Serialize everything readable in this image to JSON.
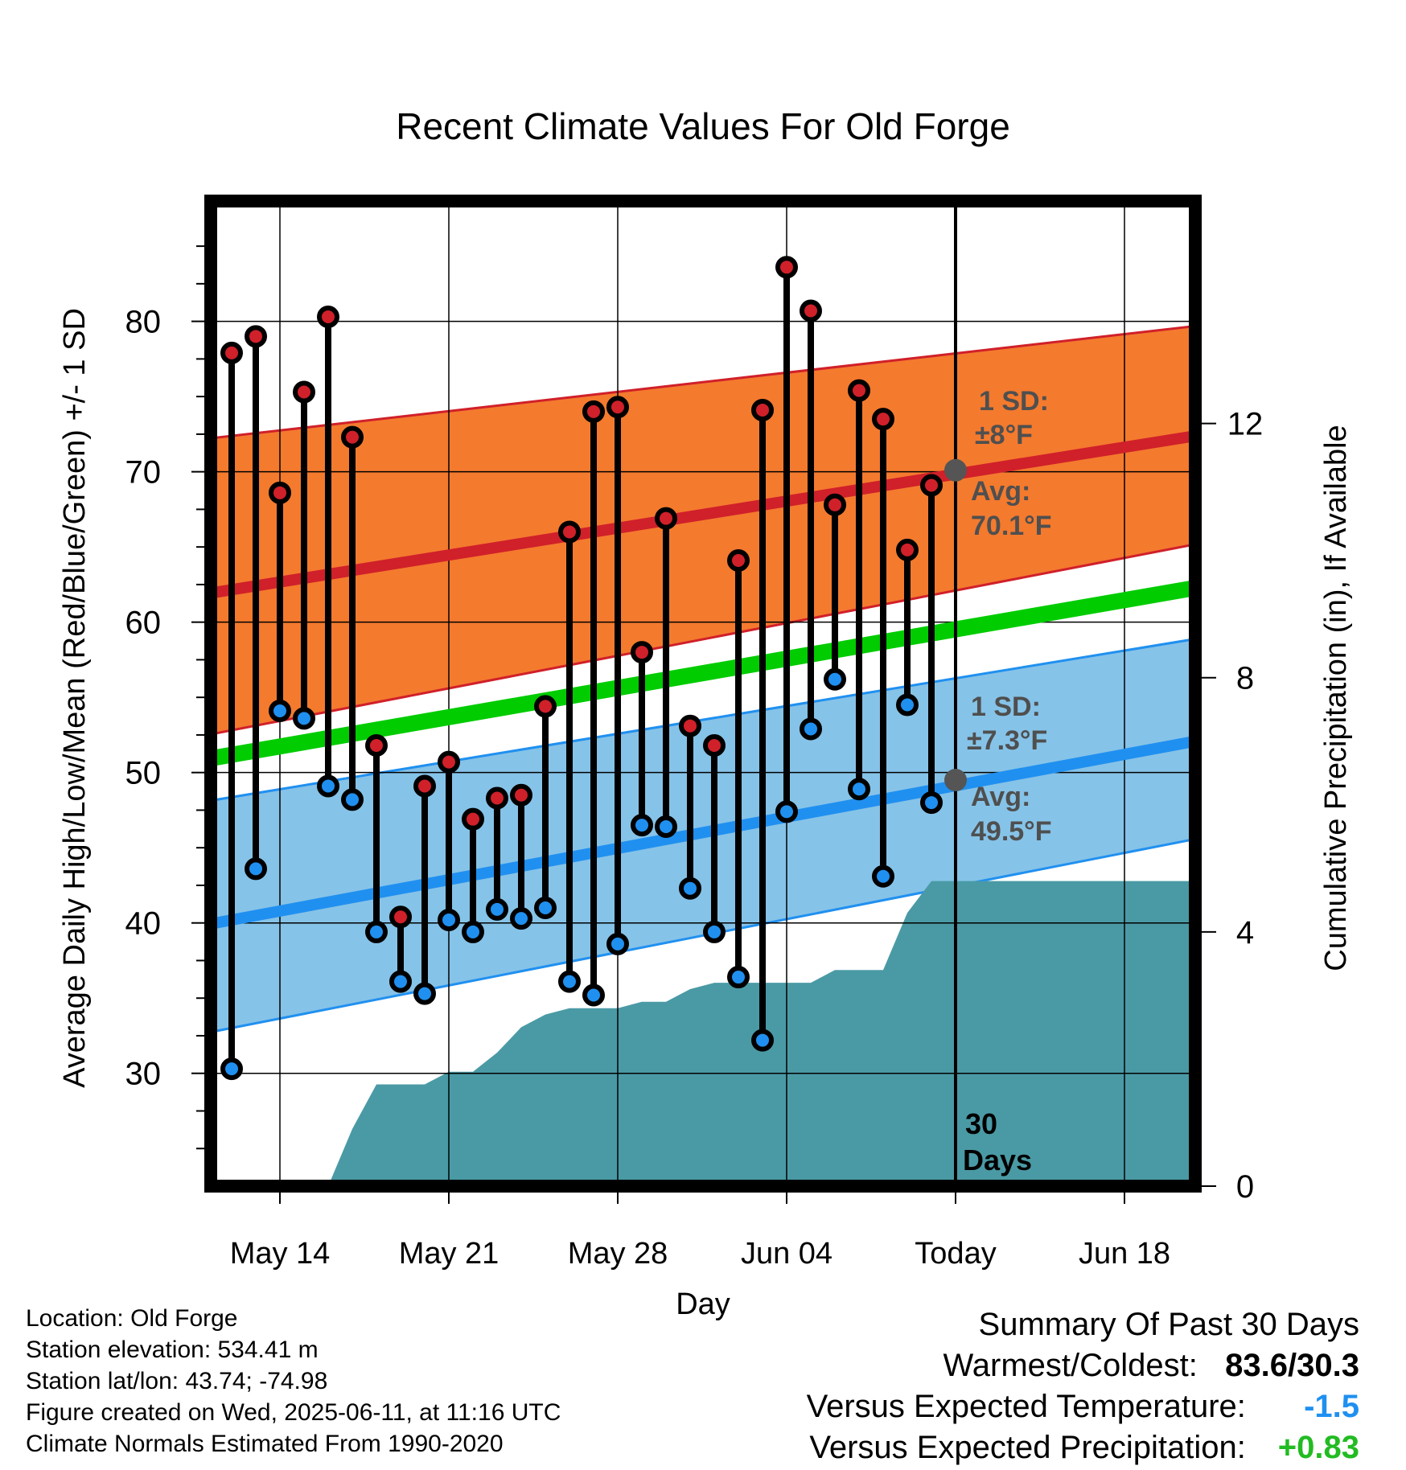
{
  "chart_data": {
    "type": "line",
    "title": "Recent Climate Values For Old Forge",
    "xlabel": "Day",
    "ylabel_left": "Average Daily High/Low/Mean (Red/Blue/Green) +/- 1 SD",
    "ylabel_right": "Cumulative Precipitation (in), If Available",
    "x_tick_labels": [
      "May 14",
      "May 21",
      "May 28",
      "Jun 04",
      "Today",
      "Jun 18"
    ],
    "y_left_ticks": [
      30,
      40,
      50,
      60,
      70,
      80
    ],
    "y_left_range": [
      22.5,
      88
    ],
    "y_right_ticks": [
      0,
      4,
      8,
      12
    ],
    "y_right_range": [
      0,
      15.5
    ],
    "grid": true,
    "today_label": "Today",
    "days_label": [
      "30",
      "Days"
    ],
    "days": [
      "2025-05-12",
      "2025-05-13",
      "2025-05-14",
      "2025-05-15",
      "2025-05-16",
      "2025-05-17",
      "2025-05-18",
      "2025-05-19",
      "2025-05-20",
      "2025-05-21",
      "2025-05-22",
      "2025-05-23",
      "2025-05-24",
      "2025-05-25",
      "2025-05-26",
      "2025-05-27",
      "2025-05-28",
      "2025-05-29",
      "2025-05-30",
      "2025-05-31",
      "2025-06-01",
      "2025-06-02",
      "2025-06-03",
      "2025-06-04",
      "2025-06-05",
      "2025-06-06",
      "2025-06-07",
      "2025-06-08",
      "2025-06-09",
      "2025-06-10"
    ],
    "series": [
      {
        "name": "Daily High",
        "color": "#d0202a",
        "values": [
          77.9,
          79.0,
          68.6,
          75.3,
          80.3,
          72.3,
          51.8,
          40.4,
          49.1,
          50.7,
          46.9,
          48.3,
          48.5,
          54.4,
          66.0,
          74.0,
          74.3,
          58.0,
          66.9,
          53.1,
          51.8,
          64.1,
          74.1,
          83.6,
          80.7,
          67.8,
          75.4,
          73.5,
          64.8,
          69.1
        ]
      },
      {
        "name": "Daily Low",
        "color": "#2090f0",
        "values": [
          30.3,
          43.6,
          54.1,
          53.6,
          49.1,
          48.2,
          39.4,
          36.1,
          35.3,
          40.2,
          39.4,
          40.9,
          40.3,
          41.0,
          36.1,
          35.2,
          38.6,
          46.5,
          46.4,
          42.3,
          39.4,
          36.4,
          32.2,
          47.4,
          52.9,
          56.2,
          48.9,
          43.1,
          54.5,
          48.0
        ]
      }
    ],
    "normals": {
      "dates": [
        "2025-05-11",
        "2025-06-21"
      ],
      "high_avg": [
        61.9,
        72.4
      ],
      "high_plus_sd": [
        72.2,
        79.7
      ],
      "high_minus_sd": [
        52.5,
        65.2
      ],
      "low_avg": [
        39.9,
        52.1
      ],
      "low_plus_sd": [
        48.1,
        58.9
      ],
      "low_minus_sd": [
        32.7,
        45.6
      ],
      "mean_avg": [
        50.9,
        62.3
      ]
    },
    "precip_cumulative": {
      "days": [
        "2025-05-15",
        "2025-05-16",
        "2025-05-17",
        "2025-05-18",
        "2025-05-19",
        "2025-05-20",
        "2025-05-21",
        "2025-05-22",
        "2025-05-23",
        "2025-05-24",
        "2025-05-25",
        "2025-05-26",
        "2025-05-27",
        "2025-05-28",
        "2025-05-29",
        "2025-05-30",
        "2025-05-31",
        "2025-06-01",
        "2025-06-02",
        "2025-06-03",
        "2025-06-04",
        "2025-06-05",
        "2025-06-06",
        "2025-06-07",
        "2025-06-08",
        "2025-06-09",
        "2025-06-10",
        "2025-06-11",
        "2025-06-21"
      ],
      "values": [
        0.0,
        0.0,
        0.9,
        1.6,
        1.6,
        1.6,
        1.8,
        1.8,
        2.1,
        2.5,
        2.7,
        2.8,
        2.8,
        2.8,
        2.9,
        2.9,
        3.1,
        3.2,
        3.2,
        3.2,
        3.2,
        3.2,
        3.4,
        3.4,
        3.4,
        4.3,
        4.8,
        4.8,
        4.8
      ],
      "color": "#4a9aa5"
    },
    "annotations": {
      "high_sd": {
        "line1": "1 SD:",
        "line2": "±8°F"
      },
      "high_avg": {
        "line1": "Avg:",
        "line2": "70.1°F",
        "value": 70.1
      },
      "low_sd": {
        "line1": "1 SD:",
        "line2": "±7.3°F"
      },
      "low_avg": {
        "line1": "Avg:",
        "line2": "49.5°F",
        "value": 49.5
      }
    },
    "colors": {
      "high_band": "#f47a2e",
      "high_line": "#d0202a",
      "low_band": "#86c3e8",
      "low_line": "#2090f0",
      "mean_line": "#00cc00",
      "annotation_text": "#4f4f4f"
    }
  },
  "footer": {
    "location": "Location: Old Forge",
    "elevation": "Station elevation: 534.41 m",
    "latlon": "Station lat/lon: 43.74; -74.98",
    "created": "Figure created on Wed, 2025-06-11, at 11:16 UTC",
    "normals": "Climate Normals Estimated From 1990-2020"
  },
  "summary": {
    "heading": "Summary Of Past 30 Days",
    "warmest_label": "Warmest/Coldest:",
    "warmest_value": "83.6/30.3",
    "temp_label": "Versus Expected Temperature:",
    "temp_value": "-1.5",
    "temp_color": "#2090f0",
    "precip_label": "Versus Expected Precipitation:",
    "precip_value": "+0.83",
    "precip_color": "#22bb22"
  }
}
